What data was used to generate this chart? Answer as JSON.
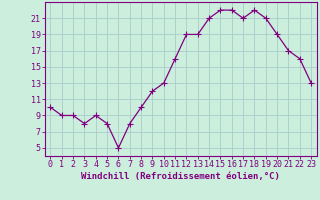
{
  "x": [
    0,
    1,
    2,
    3,
    4,
    5,
    6,
    7,
    8,
    9,
    10,
    11,
    12,
    13,
    14,
    15,
    16,
    17,
    18,
    19,
    20,
    21,
    22,
    23
  ],
  "y": [
    10,
    9,
    9,
    8,
    9,
    8,
    5,
    8,
    10,
    12,
    13,
    16,
    19,
    19,
    21,
    22,
    22,
    21,
    22,
    21,
    19,
    17,
    16,
    13
  ],
  "line_color": "#800080",
  "marker": "+",
  "marker_size": 4,
  "marker_linewidth": 0.8,
  "line_width": 0.9,
  "background_color": "#cceedd",
  "grid_color": "#aacccc",
  "xlabel": "Windchill (Refroidissement éolien,°C)",
  "xlabel_fontsize": 6.5,
  "xtick_labels": [
    "0",
    "1",
    "2",
    "3",
    "4",
    "5",
    "6",
    "7",
    "8",
    "9",
    "10",
    "11",
    "12",
    "13",
    "14",
    "15",
    "16",
    "17",
    "18",
    "19",
    "20",
    "21",
    "22",
    "23"
  ],
  "ytick_values": [
    5,
    7,
    9,
    11,
    13,
    15,
    17,
    19,
    21
  ],
  "ylim": [
    4,
    23
  ],
  "xlim": [
    -0.5,
    23.5
  ],
  "tick_color": "#800080",
  "tick_fontsize": 6,
  "spine_color": "#800080"
}
